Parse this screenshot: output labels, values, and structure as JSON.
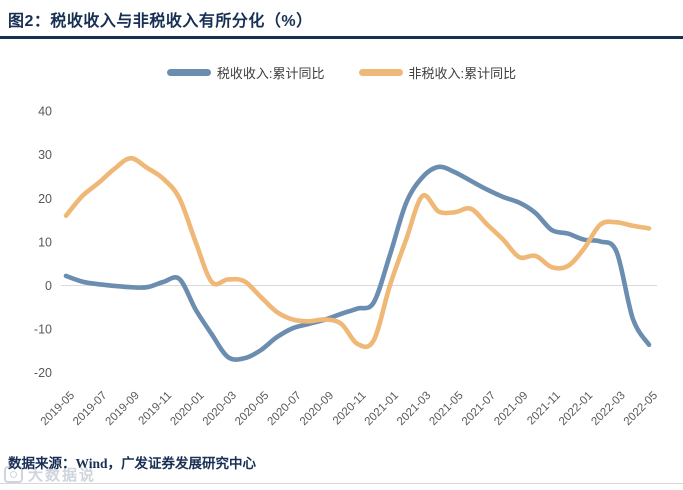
{
  "header": {
    "title": "图2：税收收入与非税收入有所分化（%）"
  },
  "legend": [
    {
      "label": "税收收入:累计同比",
      "color": "#6a8db0"
    },
    {
      "label": "非税收入:累计同比",
      "color": "#f0b877"
    }
  ],
  "footer": {
    "source": "数据来源：Wind，广发证券发展研究中心",
    "watermark": "大数据说"
  },
  "colors": {
    "accent_navy": "#182f54",
    "grid_line": "#d9d9d9",
    "axis_text": "#595959",
    "tax_line_blue": "#6a8db0",
    "nontax_line_orange": "#f0b877"
  },
  "chart_data": {
    "type": "line",
    "title": "税收收入与非税收入有所分化（%）",
    "xlabel": "",
    "ylabel": "",
    "ylim": [
      -20,
      40
    ],
    "y_ticks": [
      40,
      30,
      20,
      10,
      0,
      -10,
      -20
    ],
    "grid": "zero-baseline-only",
    "legend_position": "top-center",
    "x_start_month": "2019-05",
    "x_end_month": "2022-05",
    "x_label_step": 2,
    "x_tick_labels": [
      "2019-05",
      "2019-07",
      "2019-09",
      "2019-11",
      "2020-01",
      "2020-03",
      "2020-05",
      "2020-07",
      "2020-09",
      "2020-11",
      "2021-01",
      "2021-03",
      "2021-05",
      "2021-07",
      "2021-09",
      "2021-11",
      "2022-01",
      "2022-03",
      "2022-05"
    ],
    "series": [
      {
        "id": "tax",
        "name": "税收收入:累计同比",
        "color": "#6a8db0",
        "values": [
          2.2,
          0.9,
          0.3,
          -0.1,
          -0.4,
          -0.4,
          0.8,
          1.5,
          -5.5,
          -11.2,
          -16.4,
          -16.7,
          -14.9,
          -11.9,
          -9.8,
          -8.8,
          -7.8,
          -6.5,
          -5.3,
          -3.9,
          7.0,
          18.9,
          24.8,
          27.2,
          26.0,
          24.0,
          22.0,
          20.3,
          19.0,
          16.6,
          12.7,
          11.9,
          10.5,
          10.1,
          7.7,
          -7.6,
          -13.6
        ]
      },
      {
        "id": "nontax",
        "name": "非税收入:累计同比",
        "color": "#f0b877",
        "values": [
          16.0,
          20.5,
          23.5,
          26.8,
          29.2,
          27.0,
          24.5,
          20.0,
          10.0,
          0.8,
          1.4,
          1.0,
          -2.5,
          -6.0,
          -7.8,
          -8.2,
          -7.8,
          -8.8,
          -13.4,
          -12.6,
          0.0,
          10.5,
          20.5,
          17.0,
          16.8,
          17.6,
          14.0,
          10.5,
          6.5,
          6.8,
          4.2,
          4.5,
          8.5,
          14.0,
          14.5,
          13.7,
          13.1
        ]
      }
    ]
  }
}
